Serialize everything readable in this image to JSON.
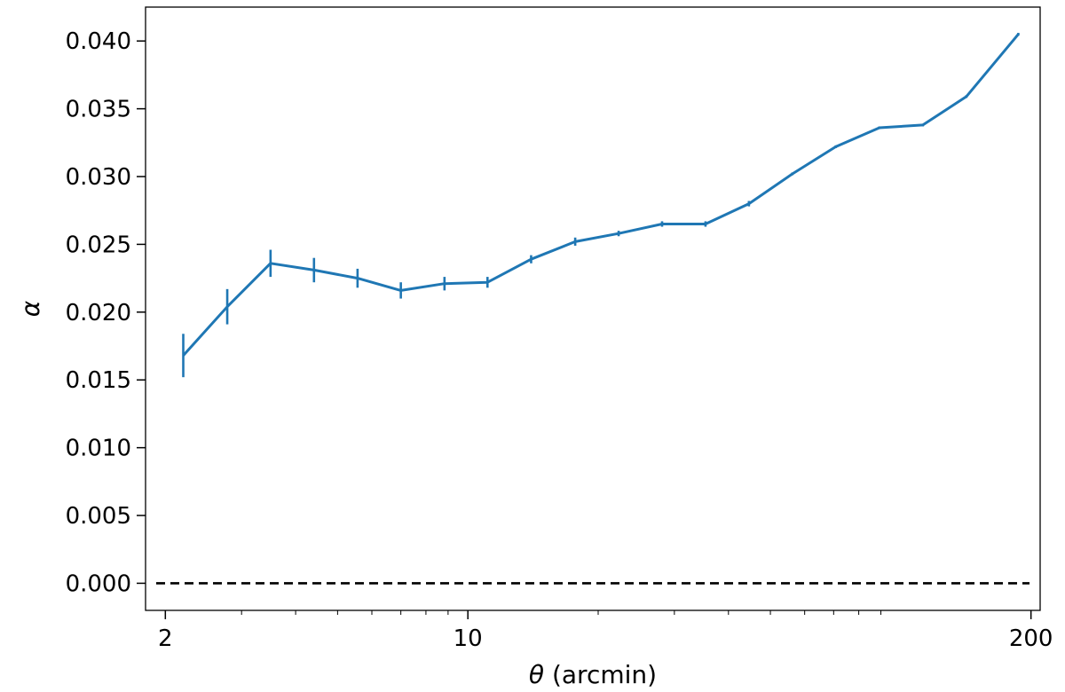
{
  "chart_data": {
    "type": "line",
    "title": "",
    "xlabel": "θ (arcmin)",
    "xlabel_parts": {
      "symbol": "θ",
      "text": " (arcmin)"
    },
    "ylabel": "α",
    "x_scale": "log",
    "xlim": [
      1.8,
      210
    ],
    "ylim": [
      -0.002,
      0.0425
    ],
    "grid": false,
    "legend": "none",
    "x_ticks": [
      {
        "value": 2,
        "label": "2"
      },
      {
        "value": 10,
        "label": "10"
      },
      {
        "value": 200,
        "label": "200"
      }
    ],
    "y_ticks": [
      {
        "value": 0.0,
        "label": "0.000"
      },
      {
        "value": 0.005,
        "label": "0.005"
      },
      {
        "value": 0.01,
        "label": "0.010"
      },
      {
        "value": 0.015,
        "label": "0.015"
      },
      {
        "value": 0.02,
        "label": "0.020"
      },
      {
        "value": 0.025,
        "label": "0.025"
      },
      {
        "value": 0.03,
        "label": "0.030"
      },
      {
        "value": 0.035,
        "label": "0.035"
      },
      {
        "value": 0.04,
        "label": "0.040"
      }
    ],
    "reference_line": {
      "y": 0.0,
      "style": "dashed",
      "color": "#000000"
    },
    "series": [
      {
        "color": "#1f77b4",
        "x": [
          2.2,
          2.78,
          3.5,
          4.41,
          5.56,
          7.0,
          8.83,
          11.1,
          14.0,
          17.7,
          22.3,
          28.1,
          35.4,
          44.6,
          56.2,
          70.8,
          89.3,
          112.5,
          141.8,
          187.0
        ],
        "y": [
          0.0168,
          0.0204,
          0.0236,
          0.0231,
          0.0225,
          0.0216,
          0.0221,
          0.0222,
          0.0239,
          0.0252,
          0.0258,
          0.0265,
          0.0265,
          0.028,
          0.0302,
          0.0322,
          0.0336,
          0.0338,
          0.0359,
          0.0405
        ],
        "yerr": [
          0.0016,
          0.0013,
          0.001,
          0.0009,
          0.0007,
          0.0006,
          0.0005,
          0.0004,
          0.0003,
          0.0003,
          0.0002,
          0.0002,
          0.0002,
          0.0002,
          0.0001,
          0.0001,
          0.0001,
          0.0001,
          0.0001,
          0.0001
        ]
      }
    ]
  }
}
